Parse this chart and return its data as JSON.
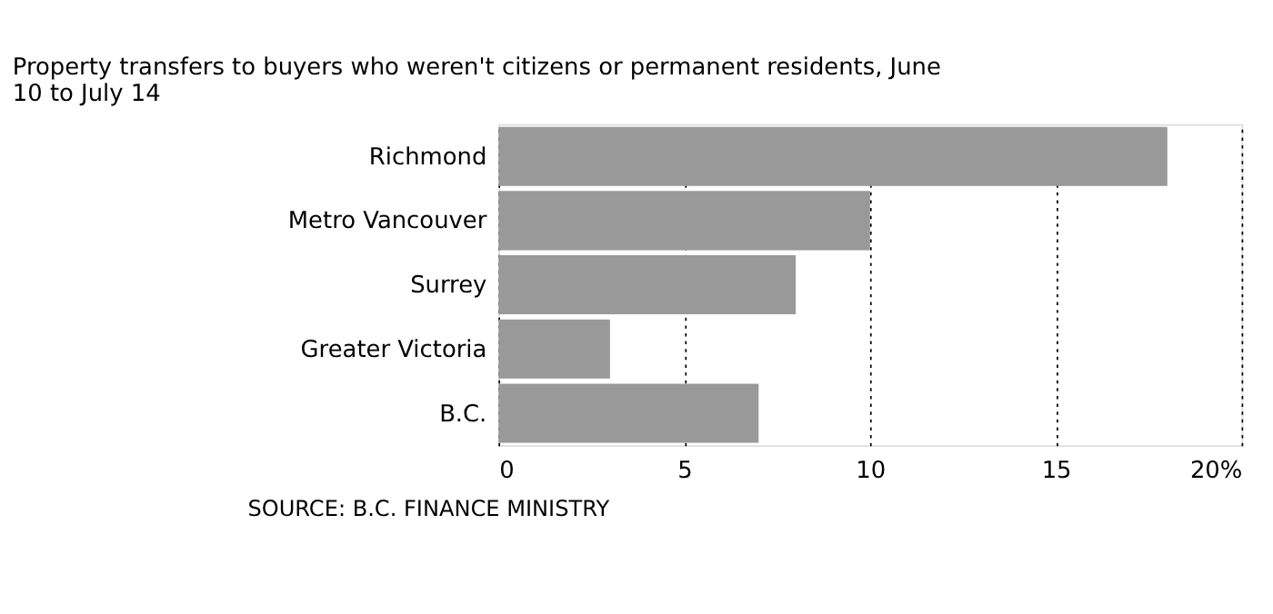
{
  "chart_data": {
    "type": "bar",
    "orientation": "horizontal",
    "title": "Property transfers to buyers who weren't citizens or permanent residents, June 10 to July 14",
    "categories": [
      "Richmond",
      "Metro Vancouver",
      "Surrey",
      "Greater Victoria",
      "B.C."
    ],
    "values": [
      18,
      10,
      8,
      3,
      7
    ],
    "color": "#999999",
    "xlim": [
      0,
      20
    ],
    "xticks": [
      0,
      5,
      10,
      15,
      {
        "value": 20,
        "label": "20%"
      }
    ],
    "grid": "x",
    "annotations": [
      "SOURCE: B.C. FINANCE MINISTRY"
    ]
  }
}
